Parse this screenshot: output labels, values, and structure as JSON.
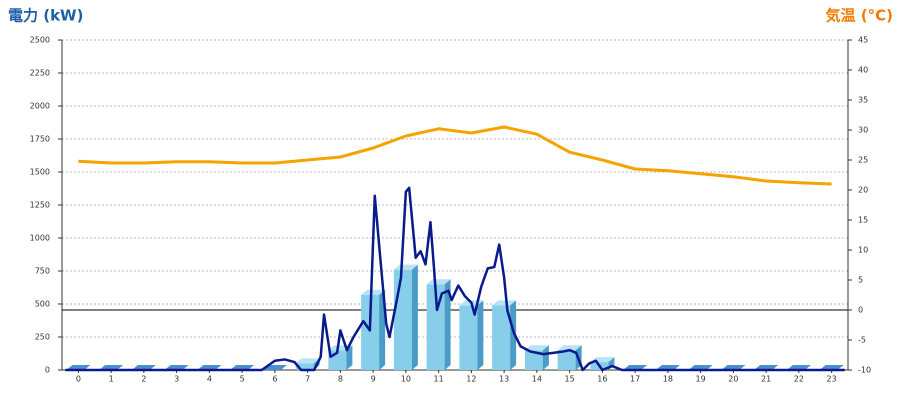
{
  "chart_data": {
    "type": "combo",
    "title": "電力 (kW)",
    "y2_title": "気温 (°C)",
    "categories": [
      "0",
      "1",
      "2",
      "3",
      "4",
      "5",
      "6",
      "7",
      "8",
      "9",
      "10",
      "11",
      "12",
      "13",
      "14",
      "15",
      "16",
      "17",
      "18",
      "19",
      "20",
      "21",
      "22",
      "23"
    ],
    "ylim": [
      0,
      2500
    ],
    "yticks": [
      0,
      250,
      500,
      750,
      1000,
      1250,
      1500,
      1750,
      2000,
      2250,
      2500
    ],
    "y2lim": [
      -10,
      45
    ],
    "y2ticks": [
      -10,
      -5,
      0,
      5,
      10,
      15,
      20,
      25,
      30,
      35,
      40,
      45
    ],
    "xlim": [
      -0.5,
      23.5
    ],
    "grid": true,
    "bars": {
      "color": "#87ceeb",
      "values": [
        0,
        0,
        0,
        0,
        0,
        0,
        0,
        50,
        150,
        570,
        760,
        650,
        490,
        490,
        150,
        150,
        60,
        0,
        0,
        0,
        0,
        0,
        0,
        0
      ]
    },
    "power_line": {
      "color": "#0a1a8c",
      "x": [
        -0.4,
        5.6,
        6.0,
        6.3,
        6.6,
        6.8,
        7.2,
        7.4,
        7.5,
        7.7,
        7.9,
        8.0,
        8.2,
        8.4,
        8.7,
        8.9,
        9.05,
        9.2,
        9.4,
        9.5,
        9.7,
        9.85,
        10.0,
        10.1,
        10.3,
        10.45,
        10.6,
        10.75,
        10.85,
        10.95,
        11.1,
        11.3,
        11.4,
        11.6,
        11.8,
        12.0,
        12.1,
        12.3,
        12.5,
        12.7,
        12.85,
        13.0,
        13.1,
        13.3,
        13.5,
        13.8,
        14.2,
        14.5,
        14.8,
        15.0,
        15.2,
        15.4,
        15.6,
        15.8,
        16.0,
        16.3,
        16.6,
        23.4
      ],
      "values": [
        0,
        0,
        70,
        80,
        60,
        0,
        0,
        100,
        420,
        100,
        130,
        300,
        150,
        250,
        370,
        300,
        1320,
        900,
        350,
        250,
        500,
        700,
        1350,
        1380,
        850,
        900,
        800,
        1120,
        800,
        455,
        580,
        600,
        530,
        640,
        560,
        510,
        420,
        630,
        770,
        780,
        950,
        700,
        450,
        280,
        180,
        140,
        120,
        130,
        140,
        150,
        130,
        0,
        50,
        70,
        0,
        30,
        0,
        0
      ]
    },
    "temperature": {
      "color": "#f5a300",
      "axis": "y2",
      "values": [
        24.8,
        24.5,
        24.5,
        24.7,
        24.7,
        24.5,
        24.5,
        25,
        25.5,
        27,
        29,
        30.2,
        29.5,
        30.5,
        29.3,
        26.3,
        25,
        23.5,
        23.2,
        22.7,
        22.2,
        21.5,
        21.2,
        21
      ]
    }
  }
}
